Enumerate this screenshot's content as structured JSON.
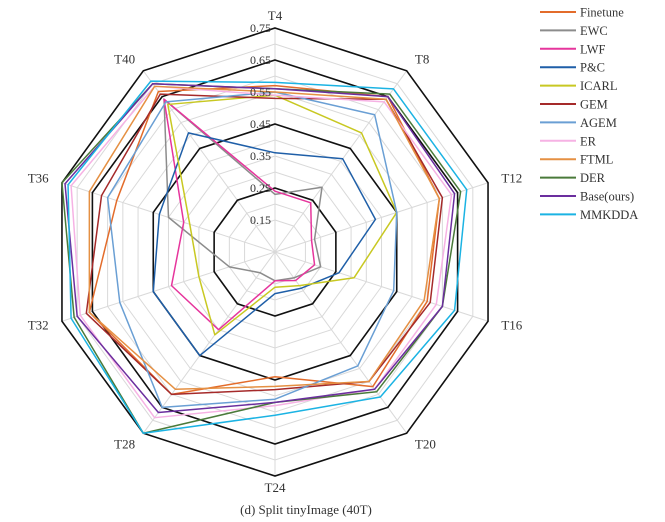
{
  "chart_data": {
    "type": "radar",
    "caption": "(d)  Split tinyImage  (40T)",
    "axes": [
      "T4",
      "T8",
      "T12",
      "T16",
      "T20",
      "T24",
      "T28",
      "T32",
      "T36",
      "T40"
    ],
    "range": [
      0.05,
      0.75
    ],
    "ticks": [
      0.15,
      0.25,
      0.35,
      0.45,
      0.55,
      0.65,
      0.75
    ],
    "tick_labels": [
      "0.15",
      "0.25",
      "0.35",
      "0.45",
      "0.55",
      "0.65",
      "0.75"
    ],
    "bold_rings": [
      0.25,
      0.45,
      0.65
    ],
    "series": [
      {
        "name": "Finetune",
        "color": "#E36C2B",
        "values": [
          0.57,
          0.65,
          0.59,
          0.55,
          0.57,
          0.44,
          0.6,
          0.66,
          0.57,
          0.67
        ]
      },
      {
        "name": "EWC",
        "color": "#8C8C8C",
        "values": [
          0.23,
          0.3,
          0.18,
          0.2,
          0.15,
          0.14,
          0.13,
          0.2,
          0.4,
          0.64
        ]
      },
      {
        "name": "LWF",
        "color": "#E6359C",
        "values": [
          0.24,
          0.24,
          0.17,
          0.18,
          0.16,
          0.14,
          0.35,
          0.39,
          0.35,
          0.64
        ]
      },
      {
        "name": "P&C",
        "color": "#1F5FA8",
        "values": [
          0.36,
          0.41,
          0.38,
          0.26,
          0.19,
          0.18,
          0.45,
          0.45,
          0.43,
          0.51
        ]
      },
      {
        "name": "ICARL",
        "color": "#C8C822",
        "values": [
          0.54,
          0.51,
          0.45,
          0.31,
          0.18,
          0.16,
          0.37,
          0.3,
          0.33,
          0.62
        ]
      },
      {
        "name": "GEM",
        "color": "#A52A2A",
        "values": [
          0.53,
          0.64,
          0.6,
          0.56,
          0.55,
          0.48,
          0.6,
          0.67,
          0.62,
          0.66
        ]
      },
      {
        "name": "AGEM",
        "color": "#6A9FD4",
        "values": [
          0.55,
          0.58,
          0.45,
          0.44,
          0.49,
          0.51,
          0.65,
          0.56,
          0.6,
          0.63
        ]
      },
      {
        "name": "ER",
        "color": "#F6B2E4",
        "values": [
          0.54,
          0.63,
          0.63,
          0.58,
          0.58,
          0.53,
          0.69,
          0.69,
          0.72,
          0.69
        ]
      },
      {
        "name": "FTML",
        "color": "#E59043",
        "values": [
          0.55,
          0.64,
          0.59,
          0.54,
          0.55,
          0.47,
          0.58,
          0.66,
          0.66,
          0.69
        ]
      },
      {
        "name": "DER",
        "color": "#4A7A3A",
        "values": [
          0.56,
          0.66,
          0.66,
          0.6,
          0.59,
          0.52,
          0.75,
          0.71,
          0.75,
          0.7
        ]
      },
      {
        "name": "Base(ours)",
        "color": "#6B2E9E",
        "values": [
          0.56,
          0.65,
          0.64,
          0.6,
          0.58,
          0.52,
          0.67,
          0.7,
          0.74,
          0.7
        ]
      },
      {
        "name": "MMKDDA",
        "color": "#1BB3E3",
        "values": [
          0.58,
          0.68,
          0.68,
          0.64,
          0.61,
          0.56,
          0.75,
          0.72,
          0.73,
          0.71
        ]
      }
    ]
  }
}
